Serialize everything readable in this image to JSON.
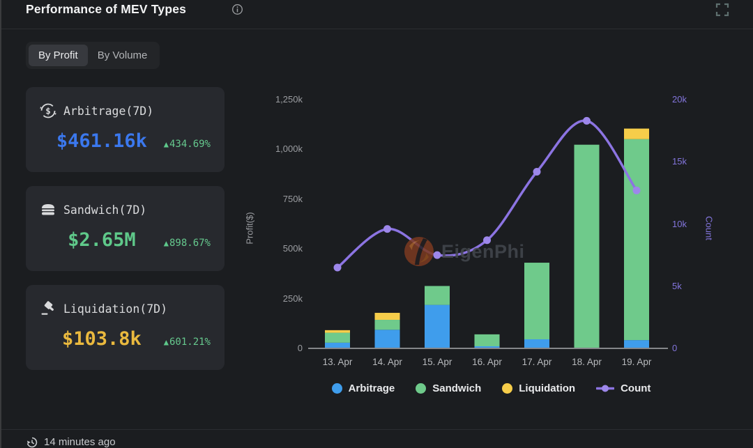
{
  "header": {
    "title": "Performance of MEV Types"
  },
  "icons": {
    "up_triangle": "▲"
  },
  "tabs": {
    "items": [
      {
        "label": "By Profit",
        "active": true
      },
      {
        "label": "By Volume",
        "active": false
      }
    ]
  },
  "cards": [
    {
      "icon": "arbitrage-dollar-cycle",
      "label": "Arbitrage(7D)",
      "value": "$461.16k",
      "value_color": "#3b78ee",
      "delta": "434.69%"
    },
    {
      "icon": "sandwich-burger",
      "label": "Sandwich(7D)",
      "value": "$2.65M",
      "value_color": "#5fc98a",
      "delta": "898.67%"
    },
    {
      "icon": "liquidation-gavel",
      "label": "Liquidation(7D)",
      "value": "$103.8k",
      "value_color": "#eab93e",
      "delta": "601.21%"
    }
  ],
  "chart_data": {
    "type": "bar",
    "subtype": "stacked bars with secondary-axis line",
    "categories": [
      "13. Apr",
      "14. Apr",
      "15. Apr",
      "16. Apr",
      "17. Apr",
      "18. Apr",
      "19. Apr"
    ],
    "series": [
      {
        "name": "Arbitrage",
        "type": "bar",
        "color": "#3f9dec",
        "axis": "left",
        "values": [
          25000,
          90000,
          215000,
          7000,
          42000,
          0,
          38000
        ]
      },
      {
        "name": "Sandwich",
        "type": "bar",
        "color": "#6fca8b",
        "axis": "left",
        "values": [
          50000,
          50000,
          95000,
          60000,
          385000,
          1020000,
          1010000
        ]
      },
      {
        "name": "Liquidation",
        "type": "bar",
        "color": "#f6cd4a",
        "axis": "left",
        "values": [
          13000,
          35000,
          0,
          0,
          0,
          0,
          53000
        ]
      },
      {
        "name": "Count",
        "type": "line",
        "color": "#8c74e2",
        "axis": "right",
        "values": [
          6500,
          9600,
          7500,
          8700,
          14200,
          18300,
          12700
        ]
      }
    ],
    "left_axis": {
      "label": "Profit($)",
      "ticks": [
        "1,250k",
        "1,000k",
        "750k",
        "500k",
        "250k",
        "0"
      ],
      "min": 0,
      "max": 1250000
    },
    "right_axis": {
      "label": "Count",
      "ticks": [
        "20k",
        "15k",
        "10k",
        "5k",
        "0"
      ],
      "min": 0,
      "max": 20000
    },
    "grid": false,
    "legend_position": "bottom"
  },
  "legend": [
    {
      "label": "Arbitrage",
      "color": "#3f9dec",
      "glyph": "dot"
    },
    {
      "label": "Sandwich",
      "color": "#6fca8b",
      "glyph": "dot"
    },
    {
      "label": "Liquidation",
      "color": "#f6cd4a",
      "glyph": "dot"
    },
    {
      "label": "Count",
      "color": "#8c74e2",
      "glyph": "line-dot"
    }
  ],
  "watermark": {
    "text": "EigenPhi"
  },
  "footer": {
    "updated": "14 minutes ago"
  }
}
